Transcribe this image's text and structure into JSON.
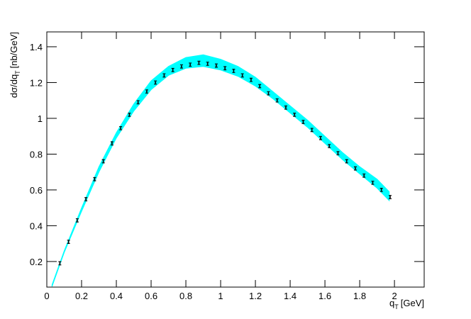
{
  "chart_data": {
    "type": "band-points",
    "x_label": {
      "main": "q",
      "sub": "T",
      "unit": "[GeV]"
    },
    "y_label": {
      "main": "dσ/dq",
      "sub": "T",
      "unit": "[nb/GeV]"
    },
    "xlim": [
      0,
      2.171
    ],
    "ylim": [
      0.057,
      1.483
    ],
    "xticks": [
      0,
      0.2,
      0.4,
      0.6,
      0.8,
      1,
      1.2,
      1.4,
      1.6,
      1.8,
      2
    ],
    "yticks": [
      0.2,
      0.4,
      0.6,
      0.8,
      1,
      1.2,
      1.4
    ],
    "band": {
      "color": "#00ffff",
      "x": [
        0.03,
        0.1,
        0.2,
        0.3,
        0.4,
        0.5,
        0.6,
        0.7,
        0.8,
        0.9,
        1.0,
        1.1,
        1.2,
        1.3,
        1.4,
        1.5,
        1.6,
        1.7,
        1.8,
        1.9,
        1.97
      ],
      "lower": [
        0.06,
        0.25,
        0.48,
        0.7,
        0.89,
        1.04,
        1.16,
        1.24,
        1.28,
        1.29,
        1.27,
        1.235,
        1.18,
        1.11,
        1.03,
        0.95,
        0.86,
        0.77,
        0.69,
        0.61,
        0.54
      ],
      "upper": [
        0.07,
        0.26,
        0.5,
        0.73,
        0.92,
        1.08,
        1.21,
        1.29,
        1.34,
        1.355,
        1.33,
        1.29,
        1.23,
        1.15,
        1.07,
        0.99,
        0.9,
        0.81,
        0.73,
        0.66,
        0.59
      ]
    },
    "points": {
      "color": "#000000",
      "x": [
        0.075,
        0.125,
        0.175,
        0.225,
        0.275,
        0.325,
        0.375,
        0.425,
        0.475,
        0.525,
        0.575,
        0.625,
        0.675,
        0.725,
        0.775,
        0.825,
        0.875,
        0.925,
        0.975,
        1.025,
        1.075,
        1.125,
        1.175,
        1.225,
        1.275,
        1.325,
        1.375,
        1.425,
        1.475,
        1.525,
        1.575,
        1.625,
        1.675,
        1.725,
        1.775,
        1.825,
        1.875,
        1.925,
        1.975
      ],
      "values": [
        0.19,
        0.31,
        0.43,
        0.548,
        0.66,
        0.76,
        0.86,
        0.945,
        1.02,
        1.09,
        1.15,
        1.2,
        1.24,
        1.27,
        1.29,
        1.3,
        1.31,
        1.305,
        1.295,
        1.28,
        1.265,
        1.24,
        1.215,
        1.18,
        1.14,
        1.1,
        1.06,
        1.02,
        0.98,
        0.935,
        0.89,
        0.845,
        0.805,
        0.76,
        0.72,
        0.68,
        0.64,
        0.6,
        0.56
      ],
      "errors": [
        0.005,
        0.005,
        0.005,
        0.005,
        0.005,
        0.005,
        0.005,
        0.005,
        0.005,
        0.005,
        0.005,
        0.005,
        0.005,
        0.005,
        0.005,
        0.005,
        0.005,
        0.005,
        0.005,
        0.005,
        0.005,
        0.005,
        0.005,
        0.005,
        0.005,
        0.005,
        0.005,
        0.005,
        0.005,
        0.005,
        0.005,
        0.005,
        0.005,
        0.005,
        0.005,
        0.005,
        0.005,
        0.005,
        0.005
      ]
    }
  }
}
